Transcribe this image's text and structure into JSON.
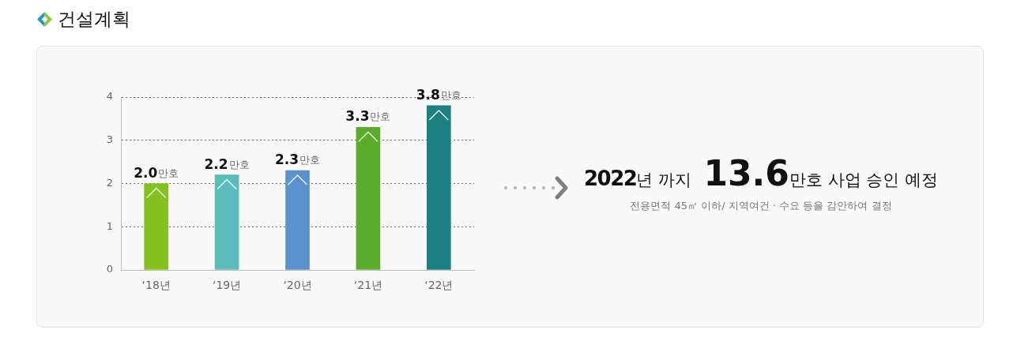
{
  "chart_data": {
    "type": "bar",
    "title": "건설계획",
    "categories": [
      "‘18년",
      "‘19년",
      "‘20년",
      "‘21년",
      "‘22년"
    ],
    "values": [
      2.0,
      2.2,
      2.3,
      3.3,
      3.8
    ],
    "colors": [
      "#84c11f",
      "#5bbcbc",
      "#5a91cf",
      "#5aad2b",
      "#1e7f80"
    ],
    "value_labels": [
      "2.0만호",
      "2.2만호",
      "2.3만호",
      "3.3만호",
      "3.8만호"
    ],
    "ylim": [
      0,
      4
    ],
    "yticks": [
      0,
      1,
      2,
      3,
      4
    ],
    "grid": "y",
    "annotations": [
      "2022년 까지 13.6만호 사업 승인 예정",
      "전용면적 45㎡ 이하/ 지역여건 · 수요 등을 감안하여 결정"
    ]
  }
}
